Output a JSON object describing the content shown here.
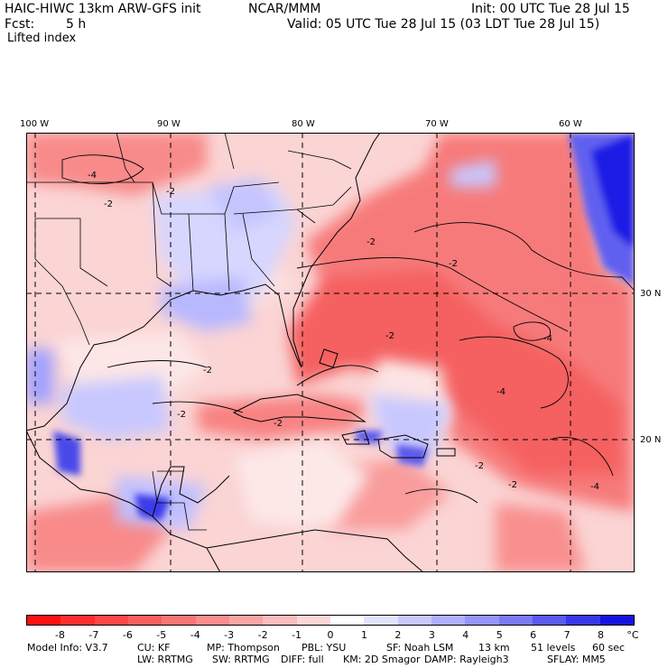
{
  "header": {
    "model": "HAIC-HIWC 13km ARW-GFS init",
    "center": "NCAR/MMM",
    "init": "Init: 00 UTC Tue 28 Jul 15",
    "fcst_label": "Fcst:",
    "fcst_value": "5 h",
    "valid": "Valid: 05 UTC Tue 28 Jul 15 (03 LDT Tue 28 Jul 15)",
    "field": "Lifted index"
  },
  "map": {
    "lon_labels": [
      "100 W",
      "90 W",
      "80 W",
      "70 W",
      "60 W"
    ],
    "lat_labels": [
      "30 N",
      "20 N"
    ],
    "contour_labels": [
      "-4",
      "-2",
      "-2",
      "-2",
      "-2",
      "-2",
      "-4",
      "-4",
      "-2",
      "-2",
      "-2",
      "-2",
      "-4",
      "-2"
    ],
    "colors": {
      "background": "#fbd4d4",
      "warm": "#f76a6a",
      "cool": "#b4b4ff",
      "deep_cool": "#1b1be6"
    }
  },
  "colorbar": {
    "labels": [
      "-8",
      "-7",
      "-6",
      "-5",
      "-4",
      "-3",
      "-2",
      "-1",
      "0",
      "1",
      "2",
      "3",
      "4",
      "5",
      "6",
      "7",
      "8"
    ],
    "unit": "°C",
    "colors": [
      "#ff1010",
      "#ff2d2d",
      "#ff4545",
      "#fb5e5e",
      "#f87575",
      "#f98c8c",
      "#faa4a4",
      "#fbbcbc",
      "#fdd6d6",
      "#ffffff",
      "#e2e2ff",
      "#c8c8ff",
      "#afafff",
      "#9595fb",
      "#7a7af5",
      "#5a5aef",
      "#3838e8",
      "#1414e0"
    ]
  },
  "footer": {
    "line1": [
      "Model Info: V3.7",
      "CU: KF",
      "MP: Thompson",
      "PBL: YSU",
      "SF: Noah LSM",
      "13 km",
      "51 levels",
      "60 sec"
    ],
    "line2": [
      "LW: RRTMG",
      "SW: RRTMG",
      "DIFF: full",
      "KM: 2D Smagor",
      "DAMP: Rayleigh3",
      "SFLAY: MM5"
    ]
  }
}
